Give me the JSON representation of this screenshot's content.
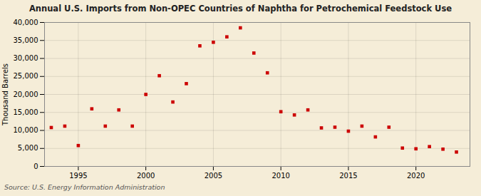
{
  "chart_data": {
    "type": "scatter",
    "title": "Annual U.S. Imports from Non-OPEC Countries of Naphtha for Petrochemical Feedstock Use",
    "ylabel": "Thousand Barrels",
    "annotation": "Source: U.S. Energy Information Administration",
    "color": "#cc0000",
    "marker": "square",
    "grid": true,
    "x": [
      1993,
      1994,
      1995,
      1996,
      1997,
      1998,
      1999,
      2000,
      2001,
      2002,
      2003,
      2004,
      2005,
      2006,
      2007,
      2008,
      2009,
      2010,
      2011,
      2012,
      2013,
      2014,
      2015,
      2016,
      2017,
      2018,
      2019,
      2020,
      2021,
      2022,
      2023
    ],
    "values": [
      10800,
      11200,
      5800,
      16000,
      11200,
      15700,
      11200,
      20000,
      25200,
      17900,
      23000,
      33500,
      34500,
      36000,
      38500,
      31500,
      26000,
      15200,
      14300,
      15700,
      10700,
      10900,
      9800,
      11200,
      8200,
      10900,
      5100,
      4900,
      5500,
      4800,
      4000
    ],
    "xlim": [
      1992.5,
      2024
    ],
    "xticks": [
      1995,
      2000,
      2005,
      2010,
      2015,
      2020
    ],
    "ylim": [
      0,
      40000
    ],
    "yticks": [
      0,
      {
        "value": 5000,
        "label": "5,000"
      },
      {
        "value": 10000,
        "label": "10,000"
      },
      {
        "value": 15000,
        "label": "15,000"
      },
      {
        "value": 20000,
        "label": "20,000"
      },
      {
        "value": 25000,
        "label": "25,000"
      },
      {
        "value": 30000,
        "label": "30,000"
      },
      {
        "value": 35000,
        "label": "35,000"
      },
      {
        "value": 40000,
        "label": "40,000"
      }
    ]
  }
}
